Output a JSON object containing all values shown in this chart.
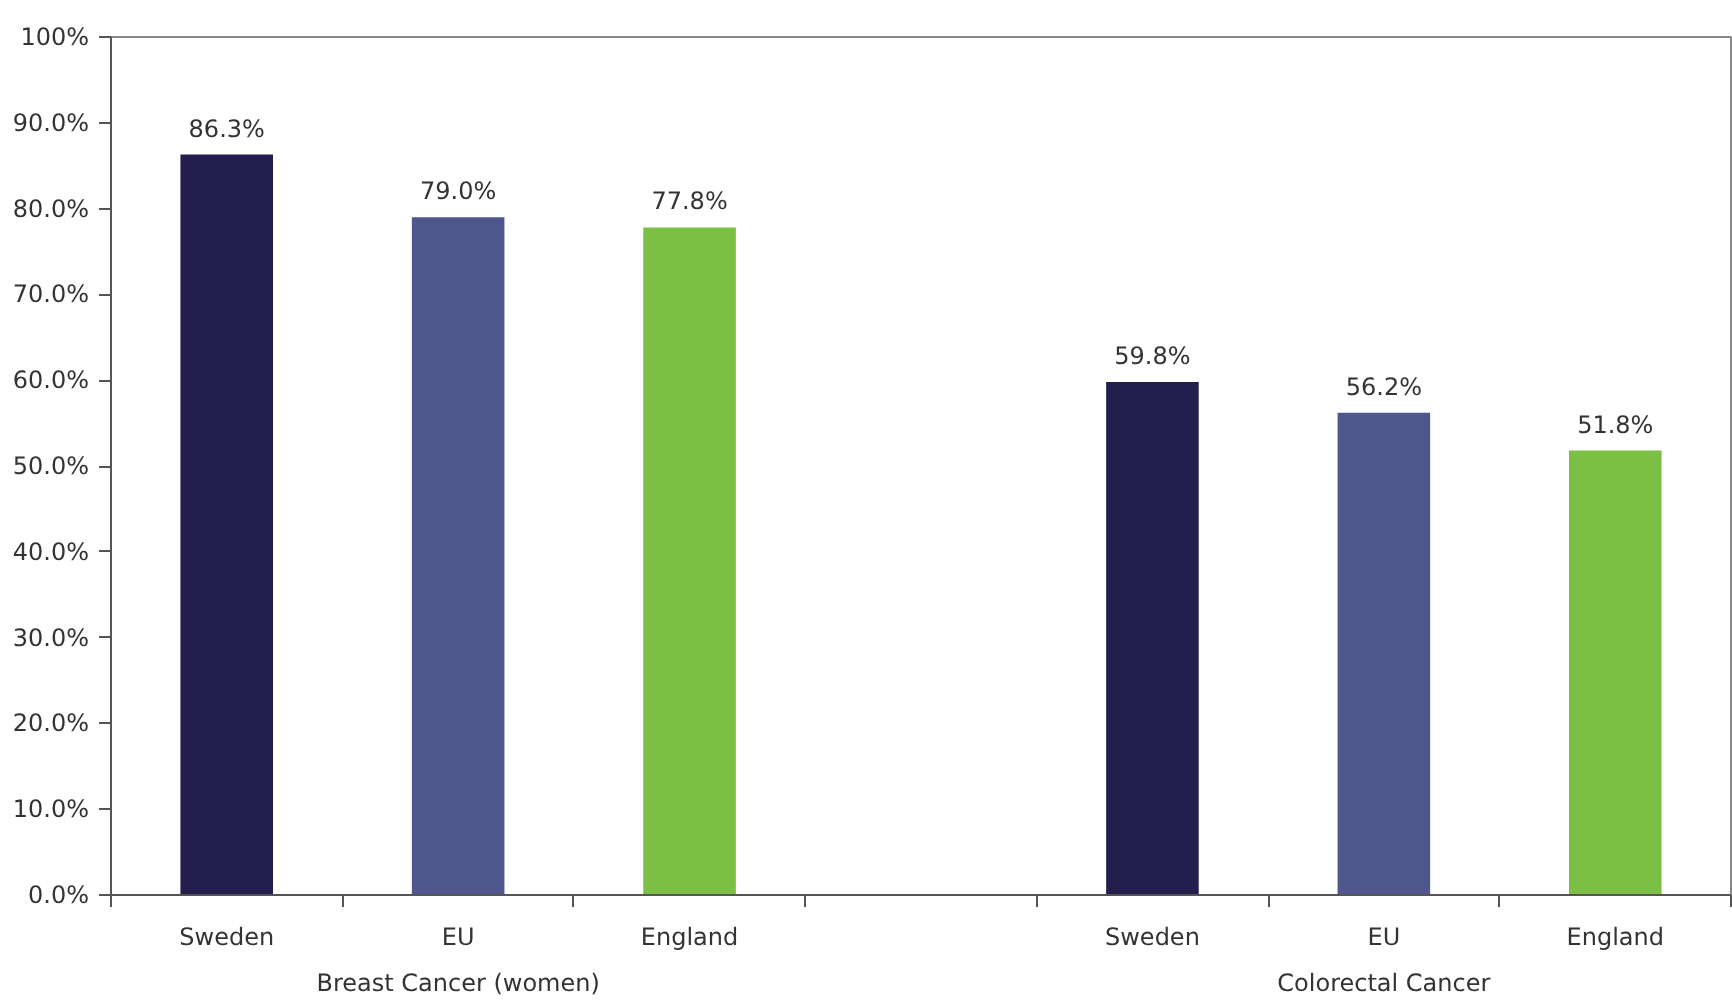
{
  "chart_data": {
    "type": "bar",
    "categories": [
      "Sweden",
      "EU",
      "England",
      null,
      "Sweden",
      "EU",
      "England"
    ],
    "values": [
      86.3,
      79.0,
      77.8,
      null,
      59.8,
      56.2,
      51.8
    ],
    "colors": [
      "#241e4e",
      "#4f568c",
      "#7bbf45",
      null,
      "#241e4e",
      "#4f568c",
      "#7bbf45"
    ],
    "value_labels": [
      "86.3%",
      "79.0%",
      "77.8%",
      null,
      "59.8%",
      "56.2%",
      "51.8%"
    ],
    "annotations": [
      "Breast Cancer (women)",
      "Colorectal Cancer"
    ],
    "ylim": [
      0,
      100
    ],
    "yticks": [
      {
        "value": 0,
        "label": "0.0%"
      },
      {
        "value": 10,
        "label": "10.0%"
      },
      {
        "value": 20,
        "label": "20.0%"
      },
      {
        "value": 30,
        "label": "30.0%"
      },
      {
        "value": 40,
        "label": "40.0%"
      },
      {
        "value": 50,
        "label": "50.0%"
      },
      {
        "value": 60,
        "label": "60.0%"
      },
      {
        "value": 70,
        "label": "70.0%"
      },
      {
        "value": 80,
        "label": "80.0%"
      },
      {
        "value": 90,
        "label": "90.0%"
      },
      {
        "value": 100,
        "label": "100%"
      }
    ],
    "grid": false
  }
}
